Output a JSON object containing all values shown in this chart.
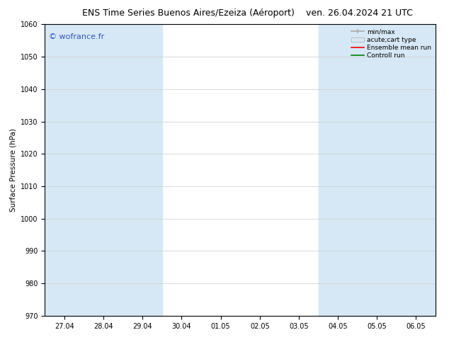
{
  "title_left": "ENS Time Series Buenos Aires/Ezeiza (Aéroport)",
  "title_right": "ven. 26.04.2024 21 UTC",
  "ylabel": "Surface Pressure (hPa)",
  "ylim": [
    970,
    1060
  ],
  "yticks": [
    970,
    980,
    990,
    1000,
    1010,
    1020,
    1030,
    1040,
    1050,
    1060
  ],
  "x_labels": [
    "27.04",
    "28.04",
    "29.04",
    "30.04",
    "01.05",
    "02.05",
    "03.05",
    "04.05",
    "05.05",
    "06.05"
  ],
  "x_positions": [
    0,
    1,
    2,
    3,
    4,
    5,
    6,
    7,
    8,
    9
  ],
  "watermark": "© wofrance.fr",
  "watermark_color": "#3355bb",
  "bg_color": "#ffffff",
  "plot_bg_color": "#ffffff",
  "shaded_color": "#d6e8f5",
  "grid_color": "#cccccc",
  "spine_color": "#000000",
  "title_fontsize": 9,
  "axis_fontsize": 7,
  "tick_fontsize": 7,
  "legend_fontsize": 6.5,
  "ylabel_fontsize": 7.5
}
